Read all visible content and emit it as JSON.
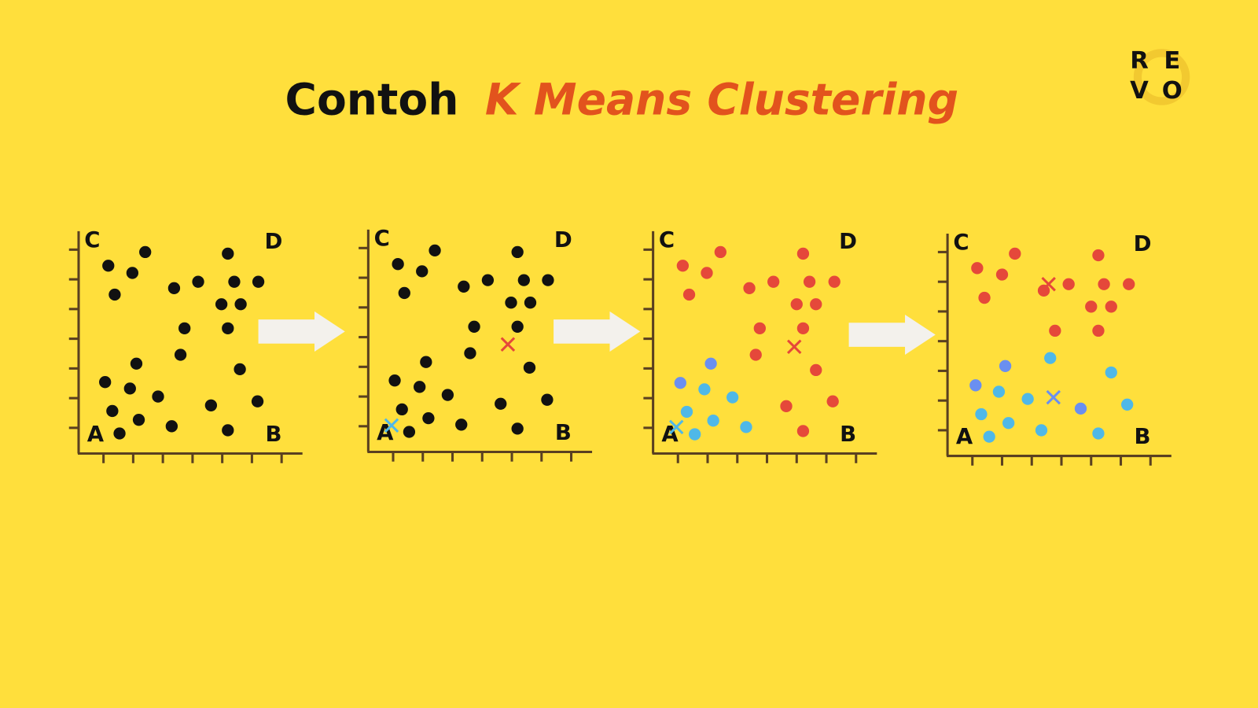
{
  "header": {
    "title_plain": "Contoh",
    "title_emphasis": "K Means Clustering"
  },
  "logo": {
    "letters": [
      "R",
      "E",
      "V",
      "O"
    ]
  },
  "panels": [
    {
      "labels": {
        "top_left": "C",
        "top_right": "D",
        "bottom_left": "A",
        "bottom_right": "B"
      }
    },
    {
      "labels": {
        "top_left": "C",
        "top_right": "D",
        "bottom_left": "A",
        "bottom_right": "B"
      }
    },
    {
      "labels": {
        "top_left": "C",
        "top_right": "D",
        "bottom_left": "A",
        "bottom_right": "B"
      }
    },
    {
      "labels": {
        "top_left": "C",
        "top_right": "D",
        "bottom_left": "A",
        "bottom_right": "B"
      }
    }
  ]
}
